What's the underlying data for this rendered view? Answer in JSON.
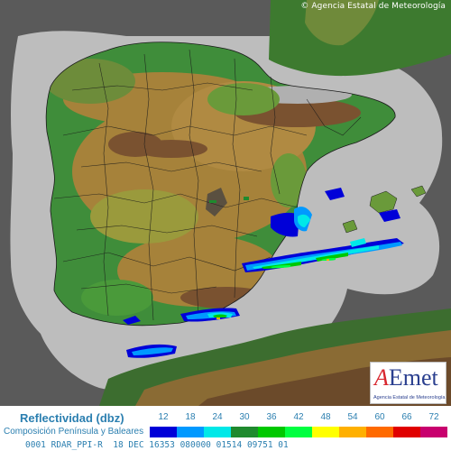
{
  "copyright": "© Agencia Estatal de Meteorología",
  "logo": {
    "wordmark_a": "A",
    "wordmark_rest": "Emet",
    "subtitle": "Agencia Estatal de Meteorología"
  },
  "legend": {
    "title": "Reflectividad (dbz)",
    "subtitle": "Composición Península y Baleares",
    "scale": [
      {
        "value": "12",
        "color": "#0000d8"
      },
      {
        "value": "18",
        "color": "#0099ff"
      },
      {
        "value": "24",
        "color": "#00e8e8"
      },
      {
        "value": "30",
        "color": "#1f8a2e"
      },
      {
        "value": "36",
        "color": "#00c800"
      },
      {
        "value": "42",
        "color": "#00ff40"
      },
      {
        "value": "48",
        "color": "#ffff00"
      },
      {
        "value": "54",
        "color": "#ffb000"
      },
      {
        "value": "60",
        "color": "#ff6a00"
      },
      {
        "value": "66",
        "color": "#e00000"
      },
      {
        "value": "72",
        "color": "#c8006e"
      }
    ]
  },
  "status_line": "0001 RDAR_PPI-R  18 DEC 16353 080000 01514 09751 01",
  "colors": {
    "sea": "#5a5a5a",
    "radar_coverage": "#bdbdbd",
    "low_land": "#3f8d3a",
    "mid_land": "#a6823a",
    "high_land": "#7a5230",
    "borders": "#1a1a1a"
  }
}
